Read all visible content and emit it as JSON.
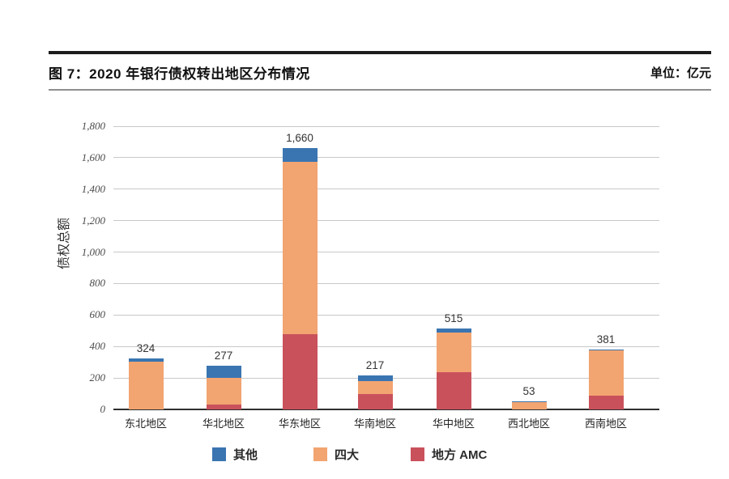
{
  "header": {
    "title": "图 7：2020 年银行债权转出地区分布情况",
    "unit_label": "单位：亿元"
  },
  "chart_data": {
    "type": "bar",
    "stacked": true,
    "title": "图 7：2020 年银行债权转出地区分布情况",
    "unit": "亿元",
    "ylabel": "债权总额",
    "categories": [
      "东北地区",
      "华北地区",
      "华东地区",
      "华南地区",
      "华中地区",
      "西北地区",
      "西南地区"
    ],
    "series": [
      {
        "name": "地方 AMC",
        "color": "#c9515c",
        "values": [
          0,
          30,
          480,
          100,
          235,
          0,
          90
        ]
      },
      {
        "name": "四大",
        "color": "#f2a471",
        "values": [
          304,
          170,
          1095,
          80,
          255,
          48,
          283
        ]
      },
      {
        "name": "其他",
        "color": "#3a75b1",
        "values": [
          20,
          77,
          85,
          37,
          25,
          5,
          8
        ]
      }
    ],
    "totals": [
      324,
      277,
      1660,
      217,
      515,
      53,
      381
    ],
    "total_labels": [
      "324",
      "277",
      "1,660",
      "217",
      "515",
      "53",
      "381"
    ],
    "ylim": [
      0,
      1800
    ],
    "ytick_step": 200,
    "ytick_labels": [
      "0",
      "200",
      "400",
      "600",
      "800",
      "1,000",
      "1,200",
      "1,400",
      "1,600",
      "1,800"
    ],
    "grid": true,
    "legend_position": "bottom",
    "legend": [
      {
        "label": "其他",
        "color": "#3a75b1"
      },
      {
        "label": "四大",
        "color": "#f2a471"
      },
      {
        "label": "地方 AMC",
        "color": "#c9515c"
      }
    ]
  }
}
